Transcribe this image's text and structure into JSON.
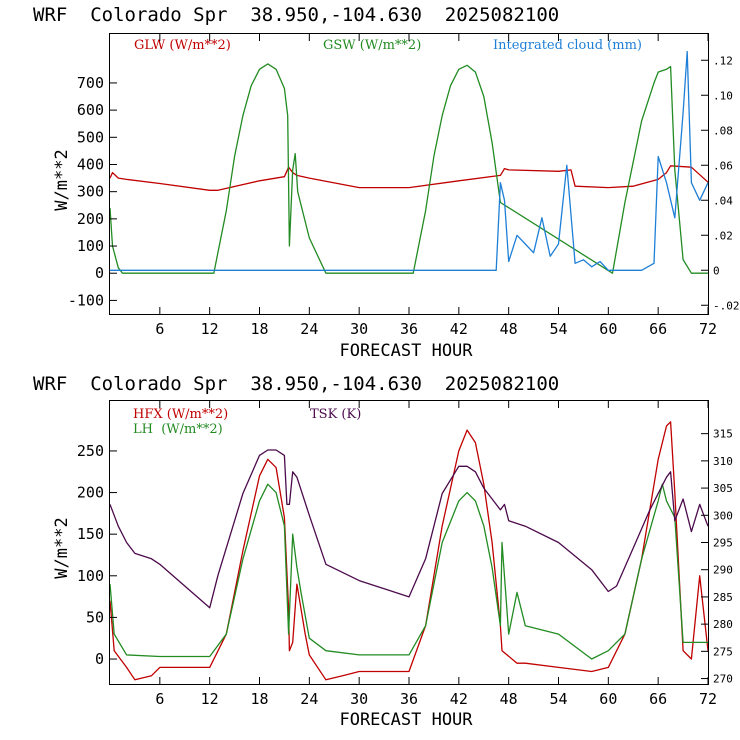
{
  "chart_data": [
    {
      "type": "line",
      "title": "WRF  Colorado Spr  38.950,-104.630  2025082100",
      "xlabel": "FORECAST HOUR",
      "ylabel": "W/m**2",
      "xlim": [
        0,
        72
      ],
      "ylim": [
        -150,
        880
      ],
      "xticks": [
        6,
        12,
        18,
        24,
        30,
        36,
        42,
        48,
        54,
        60,
        66,
        72
      ],
      "yticks": [
        -100,
        0,
        100,
        200,
        300,
        400,
        500,
        600,
        700
      ],
      "y2lim": [
        -0.025,
        0.135
      ],
      "y2ticks": [
        -0.02,
        0,
        0.02,
        0.04,
        0.06,
        0.08,
        0.1,
        0.12
      ],
      "y2ticklabels": [
        "-.02",
        "0",
        ".02",
        ".04",
        ".06",
        ".08",
        ".10",
        ".12"
      ],
      "grid": false,
      "legend_position": "top",
      "series": [
        {
          "name": "GLW (W/m**2)",
          "color": "#c00000",
          "axis": "left",
          "x": [
            0,
            0.3,
            1,
            2,
            6,
            12,
            13,
            18,
            21,
            21.5,
            22,
            22.5,
            24,
            30,
            36,
            42,
            47,
            47.5,
            48,
            54,
            55.5,
            56,
            60,
            63,
            66,
            67,
            67.5,
            70,
            72
          ],
          "y": [
            350,
            370,
            350,
            345,
            330,
            305,
            305,
            340,
            355,
            390,
            370,
            360,
            350,
            315,
            315,
            340,
            360,
            385,
            380,
            375,
            380,
            320,
            315,
            320,
            345,
            370,
            395,
            390,
            335
          ]
        },
        {
          "name": "GSW (W/m**2)",
          "color": "#228b22",
          "axis": "left",
          "x": [
            0,
            0.3,
            1,
            1.5,
            12.5,
            14,
            15,
            16,
            17,
            18,
            19,
            20,
            21,
            21.4,
            21.6,
            22,
            22.3,
            22.6,
            24,
            26,
            36.5,
            38,
            39,
            40,
            41,
            42,
            43,
            44,
            45,
            46,
            47,
            60.5,
            62,
            64,
            65.5,
            66,
            67,
            67.5,
            68,
            69,
            70,
            72
          ],
          "y": [
            240,
            100,
            20,
            0,
            0,
            230,
            430,
            580,
            690,
            750,
            770,
            750,
            680,
            580,
            100,
            380,
            440,
            300,
            130,
            0,
            0,
            230,
            430,
            580,
            690,
            750,
            765,
            740,
            650,
            480,
            260,
            0,
            260,
            560,
            700,
            740,
            750,
            760,
            380,
            50,
            0,
            0
          ]
        },
        {
          "name": "Integrated cloud (mm)",
          "color": "#1e7fd6",
          "axis": "right",
          "x": [
            0,
            46.5,
            47,
            47.5,
            48,
            49,
            50,
            51,
            52,
            53,
            54,
            55,
            56,
            57,
            58,
            59,
            60,
            64,
            65.5,
            66,
            67,
            68,
            69,
            69.5,
            70,
            71,
            72
          ],
          "y": [
            0,
            0,
            0.05,
            0.04,
            0.005,
            0.02,
            0.015,
            0.01,
            0.03,
            0.008,
            0.015,
            0.06,
            0.004,
            0.006,
            0.002,
            0.005,
            0,
            0,
            0.004,
            0.065,
            0.05,
            0.03,
            0.09,
            0.125,
            0.05,
            0.04,
            0.05
          ]
        }
      ]
    },
    {
      "type": "line",
      "title": "WRF  Colorado Spr  38.950,-104.630  2025082100",
      "xlabel": "FORECAST HOUR",
      "ylabel": "W/m**2",
      "xlim": [
        0,
        72
      ],
      "ylim": [
        -30,
        310
      ],
      "xticks": [
        6,
        12,
        18,
        24,
        30,
        36,
        42,
        48,
        54,
        60,
        66,
        72
      ],
      "yticks": [
        0,
        50,
        100,
        150,
        200,
        250
      ],
      "y2lim": [
        269,
        321
      ],
      "y2ticks": [
        270,
        275,
        280,
        285,
        290,
        295,
        300,
        305,
        310,
        315
      ],
      "grid": false,
      "legend_position": "top",
      "series": [
        {
          "name": "HFX (W/m**2)",
          "color": "#c00000",
          "axis": "left",
          "x": [
            0,
            0.5,
            2,
            3,
            5,
            6,
            12,
            14,
            16,
            18,
            19,
            20,
            21,
            21.5,
            21.6,
            22,
            22.5,
            23.5,
            24,
            26,
            28,
            30,
            36,
            38,
            40,
            42,
            43,
            44,
            45,
            46,
            47,
            47.2,
            49,
            50,
            54,
            58,
            60,
            62,
            64,
            66,
            67,
            67.5,
            68,
            69,
            70,
            71,
            72
          ],
          "y": [
            70,
            10,
            -10,
            -25,
            -20,
            -10,
            -10,
            30,
            130,
            220,
            240,
            230,
            170,
            60,
            10,
            20,
            90,
            30,
            5,
            -25,
            -20,
            -15,
            -15,
            40,
            160,
            250,
            275,
            260,
            210,
            140,
            40,
            10,
            -5,
            -5,
            -10,
            -15,
            -10,
            30,
            120,
            240,
            280,
            285,
            200,
            10,
            0,
            100,
            10
          ]
        },
        {
          "name": "LH  (W/m**2)",
          "color": "#228b22",
          "axis": "left",
          "x": [
            0,
            0.5,
            2,
            6,
            12,
            14,
            16,
            18,
            19,
            20,
            21,
            21.5,
            22,
            22.5,
            23,
            24,
            26,
            30,
            36,
            38,
            40,
            42,
            43,
            44,
            45,
            46,
            47,
            47.2,
            48,
            49,
            50,
            54,
            58,
            60,
            62,
            64,
            66,
            66.5,
            67,
            68,
            69,
            70,
            72
          ],
          "y": [
            90,
            30,
            5,
            3,
            3,
            30,
            120,
            190,
            210,
            200,
            160,
            30,
            150,
            110,
            80,
            25,
            10,
            5,
            5,
            40,
            140,
            190,
            200,
            190,
            160,
            110,
            40,
            140,
            30,
            80,
            40,
            30,
            0,
            10,
            30,
            120,
            190,
            210,
            190,
            170,
            20,
            20,
            20
          ]
        },
        {
          "name": "TSK (K)",
          "color": "#4b0a4b",
          "axis": "right",
          "x": [
            0,
            1,
            2,
            3,
            5,
            6,
            12,
            13,
            16,
            18,
            19,
            20,
            21,
            21.3,
            21.6,
            22,
            22.5,
            24,
            26,
            30,
            36,
            38,
            40,
            42,
            43,
            44,
            45,
            46,
            47,
            47.5,
            48,
            50,
            54,
            58,
            60,
            61,
            63,
            65,
            67,
            67.5,
            68,
            69,
            70,
            71,
            72
          ],
          "y": [
            302,
            298,
            295,
            293,
            292,
            291,
            283,
            289,
            304,
            311,
            312,
            312,
            311,
            302,
            302,
            308,
            307,
            300,
            291,
            288,
            285,
            292,
            304,
            309,
            309,
            308,
            305,
            303,
            301,
            302,
            299,
            298,
            295,
            290,
            286,
            287,
            294,
            301,
            307,
            308,
            299,
            303,
            297,
            302,
            298
          ]
        }
      ]
    }
  ],
  "top": {
    "title": "WRF  Colorado Spr  38.950,-104.630  2025082100",
    "legend": {
      "glw": "GLW (W/m**2)",
      "gsw": "GSW (W/m**2)",
      "cloud": "Integrated cloud (mm)"
    },
    "xlabel": "FORECAST HOUR",
    "ylabel": "W/m**2"
  },
  "bottom": {
    "title": "WRF  Colorado Spr  38.950,-104.630  2025082100",
    "legend": {
      "hfx": "HFX (W/m**2)",
      "lh": "LH  (W/m**2)",
      "tsk": "TSK (K)"
    },
    "xlabel": "FORECAST HOUR",
    "ylabel": "W/m**2"
  },
  "colors": {
    "red": "#c00000",
    "green": "#228b22",
    "blue": "#1e7fd6",
    "purple": "#4b0a4b"
  }
}
